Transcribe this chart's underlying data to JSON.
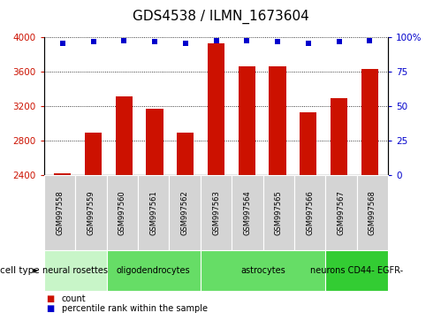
{
  "title": "GDS4538 / ILMN_1673604",
  "samples": [
    "GSM997558",
    "GSM997559",
    "GSM997560",
    "GSM997561",
    "GSM997562",
    "GSM997563",
    "GSM997564",
    "GSM997565",
    "GSM997566",
    "GSM997567",
    "GSM997568"
  ],
  "counts": [
    2420,
    2900,
    3320,
    3175,
    2900,
    3930,
    3670,
    3665,
    3130,
    3300,
    3635
  ],
  "percentile_ranks": [
    96,
    97,
    98,
    97,
    96,
    98,
    98,
    97,
    96,
    97,
    98
  ],
  "groups": [
    {
      "label": "neural rosettes",
      "start": 0,
      "end": 2,
      "color": "#c8f5c8"
    },
    {
      "label": "oligodendrocytes",
      "start": 2,
      "end": 5,
      "color": "#66dd66"
    },
    {
      "label": "astrocytes",
      "start": 5,
      "end": 9,
      "color": "#66dd66"
    },
    {
      "label": "neurons CD44- EGFR-",
      "start": 9,
      "end": 11,
      "color": "#33cc33"
    }
  ],
  "ylim": [
    2400,
    4000
  ],
  "yticks": [
    2400,
    2800,
    3200,
    3600,
    4000
  ],
  "y2ticks": [
    0,
    25,
    50,
    75,
    100
  ],
  "bar_color": "#cc1100",
  "dot_color": "#0000cc",
  "sample_bg": "#d4d4d4",
  "title_fontsize": 11,
  "tick_fontsize": 7.5,
  "sample_fontsize": 6,
  "celltype_fontsize": 7
}
